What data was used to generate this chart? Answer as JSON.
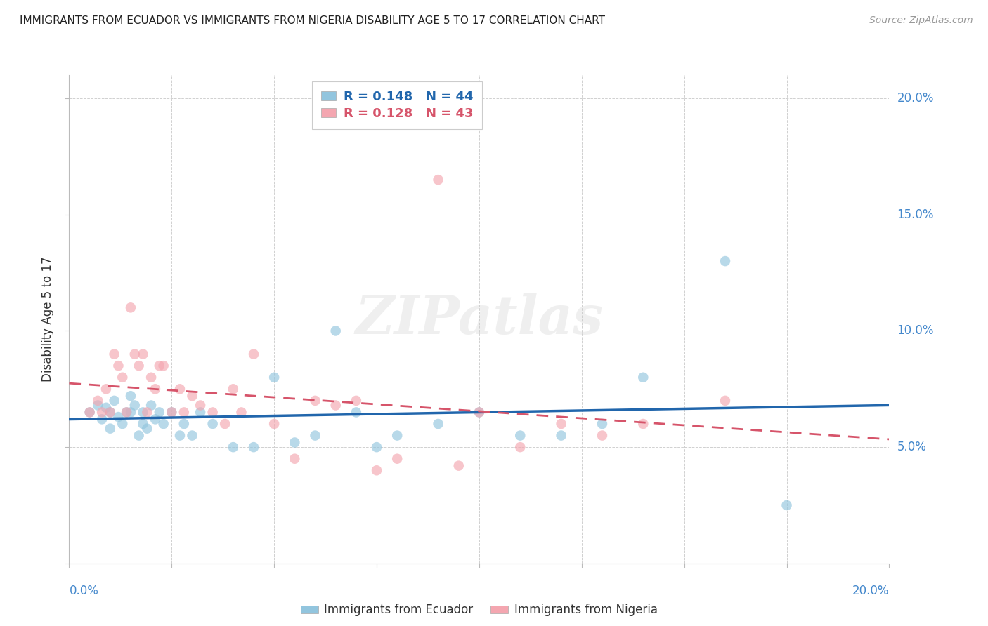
{
  "title": "IMMIGRANTS FROM ECUADOR VS IMMIGRANTS FROM NIGERIA DISABILITY AGE 5 TO 17 CORRELATION CHART",
  "source": "Source: ZipAtlas.com",
  "ylabel": "Disability Age 5 to 17",
  "xlim": [
    0.0,
    0.2
  ],
  "ylim": [
    0.0,
    0.21
  ],
  "x_ticks": [
    0.0,
    0.025,
    0.05,
    0.075,
    0.1,
    0.125,
    0.15,
    0.175,
    0.2
  ],
  "y_ticks": [
    0.0,
    0.05,
    0.1,
    0.15,
    0.2
  ],
  "x_tick_labels_show": [
    "0.0%",
    "20.0%"
  ],
  "y_tick_labels": [
    "",
    "5.0%",
    "10.0%",
    "15.0%",
    "20.0%"
  ],
  "ecuador_color": "#92c5de",
  "nigeria_color": "#f4a6b0",
  "ecuador_line_color": "#2166ac",
  "nigeria_line_color": "#d6546a",
  "ecuador_R": 0.148,
  "ecuador_N": 44,
  "nigeria_R": 0.128,
  "nigeria_N": 43,
  "watermark": "ZIPatlas",
  "legend_ecuador": "Immigrants from Ecuador",
  "legend_nigeria": "Immigrants from Nigeria",
  "ecuador_x": [
    0.005,
    0.007,
    0.008,
    0.009,
    0.01,
    0.01,
    0.011,
    0.012,
    0.013,
    0.014,
    0.015,
    0.015,
    0.016,
    0.017,
    0.018,
    0.018,
    0.019,
    0.02,
    0.021,
    0.022,
    0.023,
    0.025,
    0.027,
    0.028,
    0.03,
    0.032,
    0.035,
    0.04,
    0.045,
    0.05,
    0.055,
    0.06,
    0.065,
    0.07,
    0.075,
    0.08,
    0.09,
    0.1,
    0.11,
    0.12,
    0.13,
    0.14,
    0.16,
    0.175
  ],
  "ecuador_y": [
    0.065,
    0.068,
    0.062,
    0.067,
    0.065,
    0.058,
    0.07,
    0.063,
    0.06,
    0.065,
    0.072,
    0.065,
    0.068,
    0.055,
    0.06,
    0.065,
    0.058,
    0.068,
    0.062,
    0.065,
    0.06,
    0.065,
    0.055,
    0.06,
    0.055,
    0.065,
    0.06,
    0.05,
    0.05,
    0.08,
    0.052,
    0.055,
    0.1,
    0.065,
    0.05,
    0.055,
    0.06,
    0.065,
    0.055,
    0.055,
    0.06,
    0.08,
    0.13,
    0.025
  ],
  "nigeria_x": [
    0.005,
    0.007,
    0.008,
    0.009,
    0.01,
    0.011,
    0.012,
    0.013,
    0.014,
    0.015,
    0.016,
    0.017,
    0.018,
    0.019,
    0.02,
    0.021,
    0.022,
    0.023,
    0.025,
    0.027,
    0.028,
    0.03,
    0.032,
    0.035,
    0.038,
    0.04,
    0.042,
    0.045,
    0.05,
    0.055,
    0.06,
    0.065,
    0.07,
    0.075,
    0.08,
    0.09,
    0.095,
    0.1,
    0.11,
    0.12,
    0.13,
    0.14,
    0.16
  ],
  "nigeria_y": [
    0.065,
    0.07,
    0.065,
    0.075,
    0.065,
    0.09,
    0.085,
    0.08,
    0.065,
    0.11,
    0.09,
    0.085,
    0.09,
    0.065,
    0.08,
    0.075,
    0.085,
    0.085,
    0.065,
    0.075,
    0.065,
    0.072,
    0.068,
    0.065,
    0.06,
    0.075,
    0.065,
    0.09,
    0.06,
    0.045,
    0.07,
    0.068,
    0.07,
    0.04,
    0.045,
    0.165,
    0.042,
    0.065,
    0.05,
    0.06,
    0.055,
    0.06,
    0.07
  ]
}
